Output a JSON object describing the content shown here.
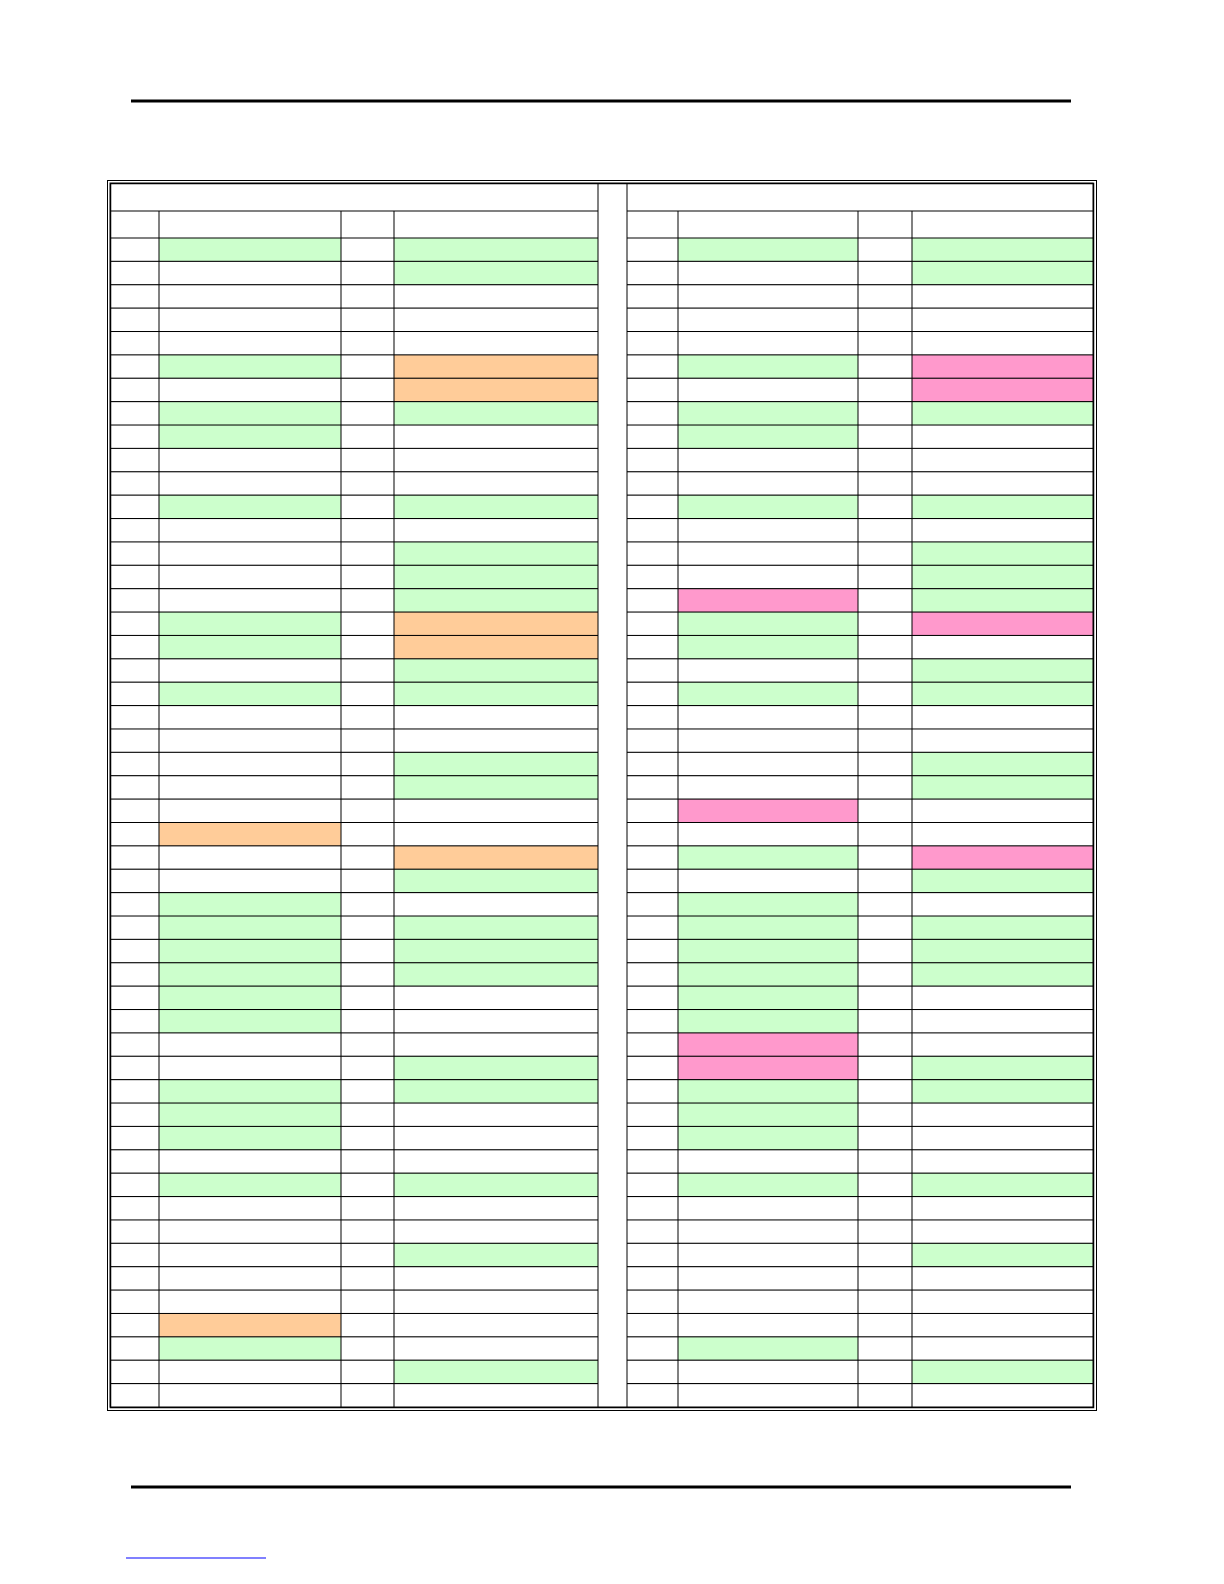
{
  "table": {
    "fills": [
      [
        "#ccffcc",
        "#ccffcc",
        "#ccffcc",
        "#ccffcc"
      ],
      [
        "#ffffff",
        "#ccffcc",
        "#ffffff",
        "#ccffcc"
      ],
      [
        "#ffffff",
        "#ffffff",
        "#ffffff",
        "#ffffff"
      ],
      [
        "#ffffff",
        "#ffffff",
        "#ffffff",
        "#ffffff"
      ],
      [
        "#ffffff",
        "#ffffff",
        "#ffffff",
        "#ffffff"
      ],
      [
        "#ccffcc",
        "#ffcc99",
        "#ccffcc",
        "#ff99cc"
      ],
      [
        "#ffffff",
        "#ffcc99",
        "#ffffff",
        "#ff99cc"
      ],
      [
        "#ccffcc",
        "#ccffcc",
        "#ccffcc",
        "#ccffcc"
      ],
      [
        "#ccffcc",
        "#ffffff",
        "#ccffcc",
        "#ffffff"
      ],
      [
        "#ffffff",
        "#ffffff",
        "#ffffff",
        "#ffffff"
      ],
      [
        "#ffffff",
        "#ffffff",
        "#ffffff",
        "#ffffff"
      ],
      [
        "#ccffcc",
        "#ccffcc",
        "#ccffcc",
        "#ccffcc"
      ],
      [
        "#ffffff",
        "#ffffff",
        "#ffffff",
        "#ffffff"
      ],
      [
        "#ffffff",
        "#ccffcc",
        "#ffffff",
        "#ccffcc"
      ],
      [
        "#ffffff",
        "#ccffcc",
        "#ffffff",
        "#ccffcc"
      ],
      [
        "#ffffff",
        "#ccffcc",
        "#ff99cc",
        "#ccffcc"
      ],
      [
        "#ccffcc",
        "#ffcc99",
        "#ccffcc",
        "#ff99cc"
      ],
      [
        "#ccffcc",
        "#ffcc99",
        "#ccffcc",
        "#ffffff"
      ],
      [
        "#ffffff",
        "#ccffcc",
        "#ffffff",
        "#ccffcc"
      ],
      [
        "#ccffcc",
        "#ccffcc",
        "#ccffcc",
        "#ccffcc"
      ],
      [
        "#ffffff",
        "#ffffff",
        "#ffffff",
        "#ffffff"
      ],
      [
        "#ffffff",
        "#ffffff",
        "#ffffff",
        "#ffffff"
      ],
      [
        "#ffffff",
        "#ccffcc",
        "#ffffff",
        "#ccffcc"
      ],
      [
        "#ffffff",
        "#ccffcc",
        "#ffffff",
        "#ccffcc"
      ],
      [
        "#ffffff",
        "#ffffff",
        "#ff99cc",
        "#ffffff"
      ],
      [
        "#ffcc99",
        "#ffffff",
        "#ffffff",
        "#ffffff"
      ],
      [
        "#ffffff",
        "#ffcc99",
        "#ccffcc",
        "#ff99cc"
      ],
      [
        "#ffffff",
        "#ccffcc",
        "#ffffff",
        "#ccffcc"
      ],
      [
        "#ccffcc",
        "#ffffff",
        "#ccffcc",
        "#ffffff"
      ],
      [
        "#ccffcc",
        "#ccffcc",
        "#ccffcc",
        "#ccffcc"
      ],
      [
        "#ccffcc",
        "#ccffcc",
        "#ccffcc",
        "#ccffcc"
      ],
      [
        "#ccffcc",
        "#ccffcc",
        "#ccffcc",
        "#ccffcc"
      ],
      [
        "#ccffcc",
        "#ffffff",
        "#ccffcc",
        "#ffffff"
      ],
      [
        "#ccffcc",
        "#ffffff",
        "#ccffcc",
        "#ffffff"
      ],
      [
        "#ffffff",
        "#ffffff",
        "#ff99cc",
        "#ffffff"
      ],
      [
        "#ffffff",
        "#ccffcc",
        "#ff99cc",
        "#ccffcc"
      ],
      [
        "#ccffcc",
        "#ccffcc",
        "#ccffcc",
        "#ccffcc"
      ],
      [
        "#ccffcc",
        "#ffffff",
        "#ccffcc",
        "#ffffff"
      ],
      [
        "#ccffcc",
        "#ffffff",
        "#ccffcc",
        "#ffffff"
      ],
      [
        "#ffffff",
        "#ffffff",
        "#ffffff",
        "#ffffff"
      ],
      [
        "#ccffcc",
        "#ccffcc",
        "#ccffcc",
        "#ccffcc"
      ],
      [
        "#ffffff",
        "#ffffff",
        "#ffffff",
        "#ffffff"
      ],
      [
        "#ffffff",
        "#ffffff",
        "#ffffff",
        "#ffffff"
      ],
      [
        "#ffffff",
        "#ccffcc",
        "#ffffff",
        "#ccffcc"
      ],
      [
        "#ffffff",
        "#ffffff",
        "#ffffff",
        "#ffffff"
      ],
      [
        "#ffffff",
        "#ffffff",
        "#ffffff",
        "#ffffff"
      ],
      [
        "#ffcc99",
        "#ffffff",
        "#ffffff",
        "#ffffff"
      ],
      [
        "#ccffcc",
        "#ffffff",
        "#ccffcc",
        "#ffffff"
      ],
      [
        "#ffffff",
        "#ccffcc",
        "#ffffff",
        "#ccffcc"
      ],
      [
        "#ffffff",
        "#ffffff",
        "#ffffff",
        "#ffffff"
      ]
    ]
  }
}
